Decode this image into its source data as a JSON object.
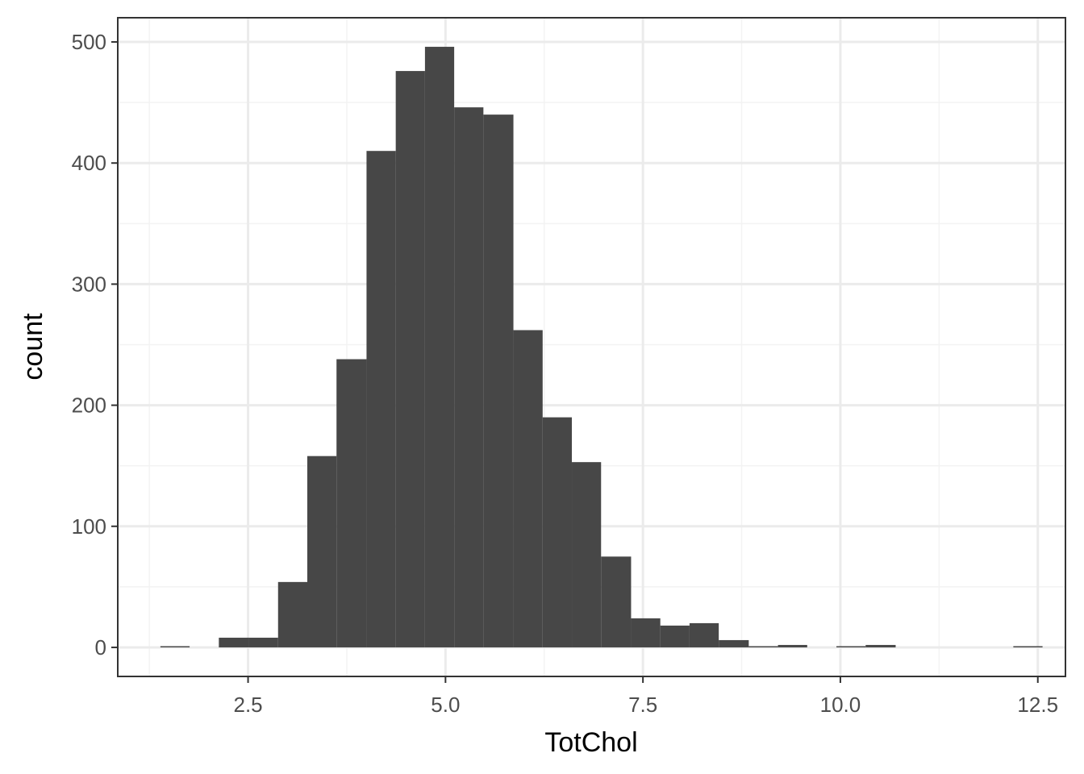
{
  "chart_data": {
    "type": "bar",
    "subtype": "histogram",
    "xlabel": "TotChol",
    "ylabel": "count",
    "xlim": [
      0.85,
      12.85
    ],
    "ylim": [
      -24,
      520
    ],
    "x_ticks": [
      2.5,
      5.0,
      7.5,
      10.0,
      12.5
    ],
    "x_tick_labels": [
      "2.5",
      "5.0",
      "7.5",
      "10.0",
      "12.5"
    ],
    "y_ticks": [
      0,
      100,
      200,
      300,
      400,
      500
    ],
    "y_tick_labels": [
      "0",
      "100",
      "200",
      "300",
      "400",
      "500"
    ],
    "grid": true,
    "bin_width": 0.372,
    "bins": [
      {
        "x0": 1.39,
        "x1": 1.76,
        "count": 1
      },
      {
        "x0": 1.76,
        "x1": 2.13,
        "count": 0
      },
      {
        "x0": 2.13,
        "x1": 2.51,
        "count": 8
      },
      {
        "x0": 2.51,
        "x1": 2.88,
        "count": 8
      },
      {
        "x0": 2.88,
        "x1": 3.25,
        "count": 54
      },
      {
        "x0": 3.25,
        "x1": 3.62,
        "count": 158
      },
      {
        "x0": 3.62,
        "x1": 4.0,
        "count": 238
      },
      {
        "x0": 4.0,
        "x1": 4.37,
        "count": 410
      },
      {
        "x0": 4.37,
        "x1": 4.74,
        "count": 476
      },
      {
        "x0": 4.74,
        "x1": 5.11,
        "count": 496
      },
      {
        "x0": 5.11,
        "x1": 5.48,
        "count": 446
      },
      {
        "x0": 5.48,
        "x1": 5.86,
        "count": 440
      },
      {
        "x0": 5.86,
        "x1": 6.23,
        "count": 262
      },
      {
        "x0": 6.23,
        "x1": 6.6,
        "count": 190
      },
      {
        "x0": 6.6,
        "x1": 6.97,
        "count": 153
      },
      {
        "x0": 6.97,
        "x1": 7.35,
        "count": 75
      },
      {
        "x0": 7.35,
        "x1": 7.72,
        "count": 24
      },
      {
        "x0": 7.72,
        "x1": 8.09,
        "count": 18
      },
      {
        "x0": 8.09,
        "x1": 8.46,
        "count": 20
      },
      {
        "x0": 8.46,
        "x1": 8.84,
        "count": 6
      },
      {
        "x0": 8.84,
        "x1": 9.21,
        "count": 1
      },
      {
        "x0": 9.21,
        "x1": 9.58,
        "count": 2
      },
      {
        "x0": 9.58,
        "x1": 9.95,
        "count": 0
      },
      {
        "x0": 9.95,
        "x1": 10.32,
        "count": 1
      },
      {
        "x0": 10.32,
        "x1": 10.7,
        "count": 2
      },
      {
        "x0": 10.7,
        "x1": 11.07,
        "count": 0
      },
      {
        "x0": 11.07,
        "x1": 11.44,
        "count": 0
      },
      {
        "x0": 11.44,
        "x1": 11.81,
        "count": 0
      },
      {
        "x0": 11.81,
        "x1": 12.19,
        "count": 0
      },
      {
        "x0": 12.19,
        "x1": 12.56,
        "count": 1
      }
    ],
    "colors": {
      "bar": "#474747",
      "panel_border": "#333333",
      "grid_major": "#ebebeb",
      "grid_minor": "#f3f3f3",
      "tick": "#333333"
    }
  }
}
